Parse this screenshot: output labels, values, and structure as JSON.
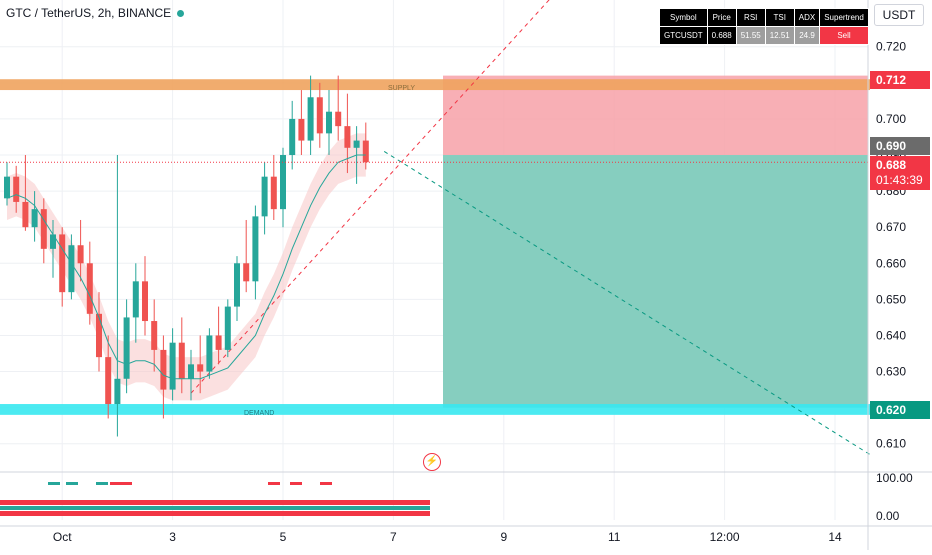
{
  "header": {
    "title": "GTC / TetherUS, 2h, BINANCE",
    "currency": "USDT"
  },
  "info_table": {
    "headers": [
      "Symbol",
      "Price",
      "RSI",
      "TSI",
      "ADX",
      "Supertrend"
    ],
    "values": [
      "GTCUSDT",
      "0.688",
      "51.55",
      "12.51",
      "24.9",
      "Sell"
    ]
  },
  "zones": {
    "supply_label": "SUPPLY",
    "demand_label": "DEMAND"
  },
  "price_tags": {
    "stop": "0.712",
    "entry": "0.690",
    "last": "0.688",
    "countdown": "01:43:39",
    "target": "0.620"
  },
  "colors": {
    "up": "#26a69a",
    "down": "#ef5350",
    "supply": "#f0a35e",
    "demand": "#38e8f0",
    "risk": "#f7a1a8",
    "reward": "#80cbbc",
    "stop_tag": "#f23645",
    "entry_tag": "#6b6b6b",
    "target_tag": "#089981"
  },
  "icons": [
    "flash-icon"
  ],
  "chart_data": {
    "type": "candlestick",
    "symbol": "GTCUSDT",
    "interval": "2h",
    "y_ticks": [
      "0.720",
      "0.710",
      "0.700",
      "0.690",
      "0.680",
      "0.670",
      "0.660",
      "0.650",
      "0.640",
      "0.630",
      "0.620",
      "0.610"
    ],
    "y_tick_values": [
      0.72,
      0.71,
      0.7,
      0.69,
      0.68,
      0.67,
      0.66,
      0.65,
      0.64,
      0.63,
      0.62,
      0.61
    ],
    "ylim": [
      0.603,
      0.736
    ],
    "x_ticks": [
      "Oct",
      "3",
      "5",
      "7",
      "9",
      "11",
      "12:00",
      "14"
    ],
    "x_tick_index": [
      6,
      18,
      30,
      42,
      54,
      66,
      78,
      90
    ],
    "candles": [
      [
        0.678,
        0.688,
        0.676,
        0.684
      ],
      [
        0.684,
        0.687,
        0.674,
        0.677
      ],
      [
        0.677,
        0.69,
        0.669,
        0.67
      ],
      [
        0.67,
        0.68,
        0.666,
        0.675
      ],
      [
        0.675,
        0.678,
        0.66,
        0.664
      ],
      [
        0.664,
        0.672,
        0.656,
        0.668
      ],
      [
        0.668,
        0.67,
        0.648,
        0.652
      ],
      [
        0.652,
        0.668,
        0.65,
        0.665
      ],
      [
        0.665,
        0.672,
        0.655,
        0.66
      ],
      [
        0.66,
        0.666,
        0.643,
        0.646
      ],
      [
        0.646,
        0.652,
        0.63,
        0.634
      ],
      [
        0.634,
        0.64,
        0.617,
        0.621
      ],
      [
        0.621,
        0.69,
        0.612,
        0.628
      ],
      [
        0.628,
        0.65,
        0.624,
        0.645
      ],
      [
        0.645,
        0.66,
        0.638,
        0.655
      ],
      [
        0.655,
        0.662,
        0.64,
        0.644
      ],
      [
        0.644,
        0.65,
        0.63,
        0.636
      ],
      [
        0.636,
        0.64,
        0.617,
        0.625
      ],
      [
        0.625,
        0.642,
        0.622,
        0.638
      ],
      [
        0.638,
        0.645,
        0.624,
        0.628
      ],
      [
        0.628,
        0.636,
        0.622,
        0.632
      ],
      [
        0.632,
        0.64,
        0.624,
        0.63
      ],
      [
        0.63,
        0.642,
        0.628,
        0.64
      ],
      [
        0.64,
        0.648,
        0.632,
        0.636
      ],
      [
        0.636,
        0.65,
        0.634,
        0.648
      ],
      [
        0.648,
        0.662,
        0.644,
        0.66
      ],
      [
        0.66,
        0.672,
        0.652,
        0.655
      ],
      [
        0.655,
        0.676,
        0.65,
        0.673
      ],
      [
        0.673,
        0.688,
        0.668,
        0.684
      ],
      [
        0.684,
        0.69,
        0.672,
        0.675
      ],
      [
        0.675,
        0.692,
        0.67,
        0.69
      ],
      [
        0.69,
        0.705,
        0.686,
        0.7
      ],
      [
        0.7,
        0.708,
        0.69,
        0.694
      ],
      [
        0.694,
        0.712,
        0.69,
        0.706
      ],
      [
        0.706,
        0.71,
        0.692,
        0.696
      ],
      [
        0.696,
        0.708,
        0.69,
        0.702
      ],
      [
        0.702,
        0.712,
        0.694,
        0.698
      ],
      [
        0.698,
        0.707,
        0.685,
        0.692
      ],
      [
        0.692,
        0.698,
        0.682,
        0.694
      ],
      [
        0.694,
        0.699,
        0.686,
        0.688
      ]
    ],
    "ema": [
      0.678,
      0.679,
      0.678,
      0.676,
      0.672,
      0.668,
      0.664,
      0.66,
      0.656,
      0.651,
      0.645,
      0.638,
      0.633,
      0.632,
      0.633,
      0.633,
      0.632,
      0.629,
      0.628,
      0.628,
      0.628,
      0.628,
      0.629,
      0.63,
      0.631,
      0.634,
      0.637,
      0.64,
      0.646,
      0.651,
      0.657,
      0.664,
      0.67,
      0.676,
      0.681,
      0.685,
      0.688,
      0.689,
      0.69,
      0.69
    ],
    "trendline": {
      "from_index": 20,
      "from_value": 0.624,
      "slope_per_bar": 0.0028
    },
    "projection": {
      "from_index": 41,
      "from_value": 0.691,
      "to_index": 95,
      "to_value": 0.607
    },
    "position": {
      "side": "short",
      "entry": 0.69,
      "stop": 0.712,
      "target": 0.62,
      "from_index": 41,
      "to_index": 95
    },
    "supply_zone": [
      0.708,
      0.711
    ],
    "demand_zone": [
      0.618,
      0.621
    ],
    "oscillator": {
      "y_ticks": [
        "100.00",
        "0.00"
      ],
      "y_tick_values": [
        100,
        0
      ]
    }
  }
}
